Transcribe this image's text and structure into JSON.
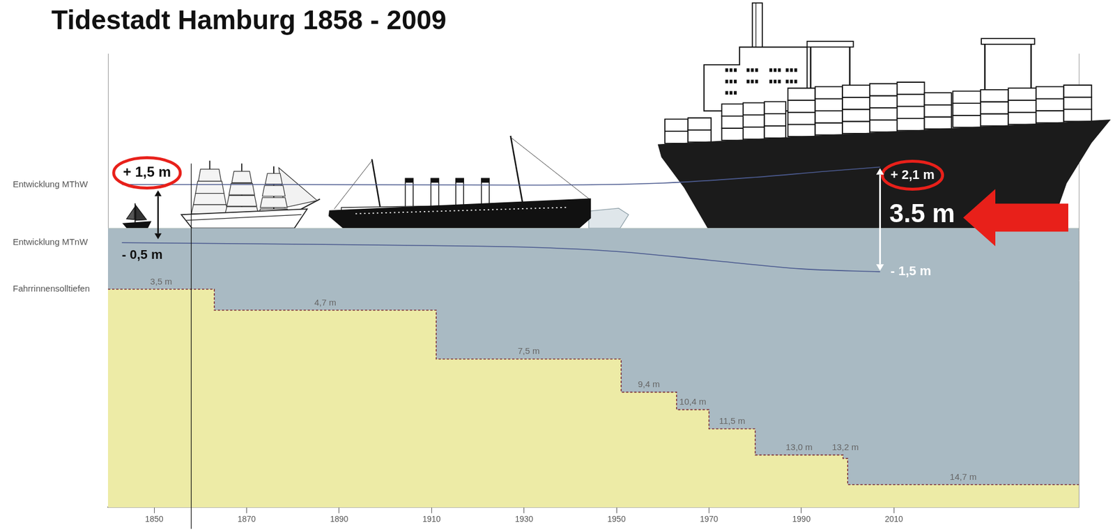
{
  "chart_data": {
    "type": "line",
    "title": "Tidestadt Hamburg 1858 - 2009",
    "xlim": [
      1840,
      2050
    ],
    "xticks": [
      1850,
      1870,
      1890,
      1910,
      1930,
      1950,
      1970,
      1990,
      2010
    ],
    "ylim": [
      16,
      -10
    ],
    "y2lim": [
      -9.6,
      6
    ],
    "tick_labels": "x",
    "grid": false,
    "vline": 1858,
    "tide_range_label": "3.5 m",
    "series": [
      {
        "name": "Entwicklung MThW",
        "color": "#4b5a8f",
        "axis": "y2",
        "x": [
          1843,
          1880,
          1930,
          1960,
          1980,
          1995,
          2007
        ],
        "values": [
          1.5,
          1.5,
          1.48,
          1.55,
          1.75,
          1.95,
          2.1
        ],
        "start_label": "+ 1,5 m",
        "end_label": "+ 2,1 m"
      },
      {
        "name": "Entwicklung MTnW",
        "color": "#4b5a8f",
        "axis": "y2",
        "x": [
          1843,
          1880,
          1910,
          1930,
          1950,
          1970,
          1990,
          2007
        ],
        "values": [
          -0.5,
          -0.55,
          -0.6,
          -0.65,
          -0.8,
          -1.1,
          -1.4,
          -1.5
        ],
        "start_label": "- 0,5 m",
        "end_label": "- 1,5 m"
      },
      {
        "name": "Fahrrinnensolltiefen",
        "type": "step",
        "color": "#7a2a35",
        "line_style": "dashed",
        "data_labels": true,
        "x": [
          1840,
          1863,
          1911,
          1951,
          1963,
          1970,
          1980,
          1999,
          2000
        ],
        "values": [
          3.5,
          4.7,
          7.5,
          9.4,
          10.4,
          11.5,
          13.0,
          13.2,
          14.7
        ],
        "value_labels": [
          "3,5 m",
          "4,7 m",
          "7,5 m",
          "9,4 m",
          "10,4 m",
          "11,5 m",
          "13,0 m",
          "13,2 m",
          "14,7 m"
        ]
      }
    ]
  }
}
